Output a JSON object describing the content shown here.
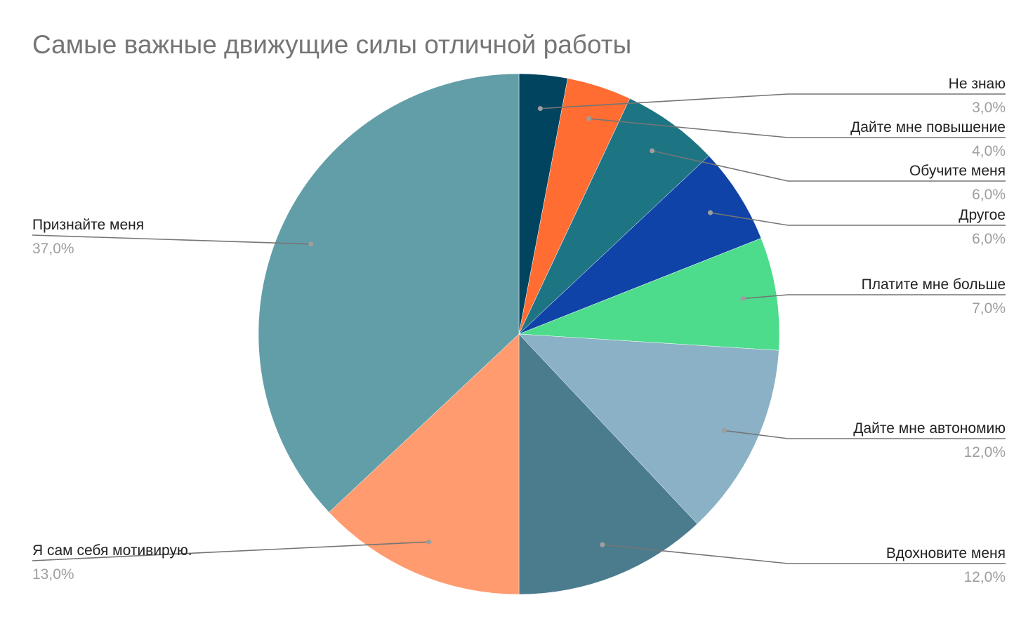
{
  "chart_data": {
    "type": "pie",
    "title": "Самые важные движущие силы отличной работы",
    "colors": {
      "title": "#757575",
      "label": "#222222",
      "percent": "#9e9e9e",
      "leader": "#757575"
    },
    "slices": [
      {
        "name": "Не знаю",
        "value": 3.0,
        "label": "3,0%",
        "color": "#00445f",
        "side": "right"
      },
      {
        "name": "Дайте мне повышение",
        "value": 4.0,
        "label": "4,0%",
        "color": "#ff6d33",
        "side": "right"
      },
      {
        "name": "Обучите меня",
        "value": 6.0,
        "label": "6,0%",
        "color": "#1d7584",
        "side": "right"
      },
      {
        "name": "Другое",
        "value": 6.0,
        "label": "6,0%",
        "color": "#1043a7",
        "side": "right"
      },
      {
        "name": "Платите мне больше",
        "value": 7.0,
        "label": "7,0%",
        "color": "#4cdc8b",
        "side": "right"
      },
      {
        "name": "Дайте мне автономию",
        "value": 12.0,
        "label": "12,0%",
        "color": "#8ab1c5",
        "side": "right"
      },
      {
        "name": "Вдохновите меня",
        "value": 12.0,
        "label": "12,0%",
        "color": "#4b7c8e",
        "side": "right"
      },
      {
        "name": "Я сам себя мотивирую.",
        "value": 13.0,
        "label": "13,0%",
        "color": "#ff9b6f",
        "side": "left"
      },
      {
        "name": "Признайте меня",
        "value": 37.0,
        "label": "37,0%",
        "color": "#629ea8",
        "side": "left"
      }
    ]
  }
}
